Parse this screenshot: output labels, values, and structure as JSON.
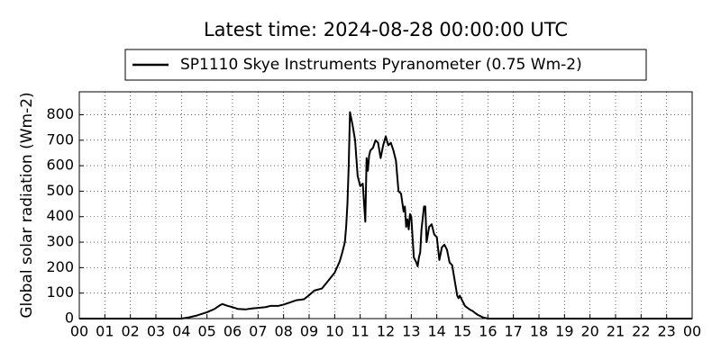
{
  "chart_data": {
    "type": "line",
    "title": "Latest time: 2024-08-28 00:00:00 UTC",
    "y_label": "Global solar radiation (Wm-2)",
    "series": [
      {
        "name": "SP1110 Skye Instruments Pyranometer (0.75 Wm-2)",
        "color": "#000000",
        "x": [
          0,
          4.0,
          4.3,
          4.6,
          5.0,
          5.3,
          5.5,
          5.6,
          5.8,
          6.0,
          6.2,
          6.5,
          6.8,
          7.0,
          7.3,
          7.5,
          7.8,
          8.0,
          8.3,
          8.5,
          8.8,
          9.0,
          9.2,
          9.5,
          9.8,
          10.0,
          10.2,
          10.3,
          10.4,
          10.45,
          10.5,
          10.55,
          10.6,
          10.7,
          10.8,
          10.9,
          11.0,
          11.1,
          11.2,
          11.25,
          11.3,
          11.35,
          11.4,
          11.5,
          11.6,
          11.7,
          11.8,
          11.9,
          12.0,
          12.1,
          12.2,
          12.3,
          12.4,
          12.5,
          12.6,
          12.7,
          12.75,
          12.8,
          12.85,
          12.9,
          12.95,
          13.0,
          13.1,
          13.2,
          13.25,
          13.3,
          13.35,
          13.4,
          13.5,
          13.55,
          13.6,
          13.7,
          13.8,
          13.9,
          14.0,
          14.1,
          14.2,
          14.3,
          14.4,
          14.5,
          14.6,
          14.7,
          14.8,
          14.85,
          14.9,
          15.0,
          15.1,
          15.2,
          15.3,
          15.4,
          15.5,
          15.6,
          15.8,
          16.0,
          16.1,
          16.2,
          16.5,
          16.8,
          17.0,
          17.3,
          17.5,
          17.8,
          18.0,
          24
        ],
        "values": [
          0,
          0,
          5,
          12,
          25,
          38,
          52,
          57,
          50,
          45,
          38,
          36,
          40,
          42,
          45,
          50,
          50,
          55,
          65,
          72,
          76,
          92,
          110,
          118,
          155,
          180,
          225,
          260,
          300,
          360,
          450,
          600,
          810,
          760,
          700,
          560,
          520,
          530,
          380,
          630,
          580,
          640,
          660,
          670,
          700,
          690,
          630,
          680,
          715,
          680,
          690,
          660,
          620,
          500,
          490,
          420,
          440,
          360,
          390,
          350,
          410,
          400,
          240,
          220,
          205,
          240,
          260,
          350,
          440,
          440,
          300,
          360,
          370,
          330,
          320,
          230,
          280,
          290,
          270,
          220,
          210,
          150,
          90,
          80,
          90,
          70,
          50,
          42,
          35,
          30,
          22,
          15,
          5,
          0,
          0,
          0,
          0,
          0,
          0,
          0,
          0,
          0,
          0,
          0
        ]
      }
    ],
    "xlim": [
      0,
      24
    ],
    "xticks": [
      {
        "value": 0,
        "label": "00"
      },
      {
        "value": 1,
        "label": "01"
      },
      {
        "value": 2,
        "label": "02"
      },
      {
        "value": 3,
        "label": "03"
      },
      {
        "value": 4,
        "label": "04"
      },
      {
        "value": 5,
        "label": "05"
      },
      {
        "value": 6,
        "label": "06"
      },
      {
        "value": 7,
        "label": "07"
      },
      {
        "value": 8,
        "label": "08"
      },
      {
        "value": 9,
        "label": "09"
      },
      10,
      11,
      12,
      13,
      14,
      15,
      16,
      17,
      18,
      19,
      20,
      21,
      22,
      23,
      {
        "value": 24,
        "label": "00"
      }
    ],
    "ylim": [
      0,
      890
    ],
    "yticks": [
      0,
      100,
      200,
      300,
      400,
      500,
      600,
      700,
      800
    ],
    "grid": true
  }
}
